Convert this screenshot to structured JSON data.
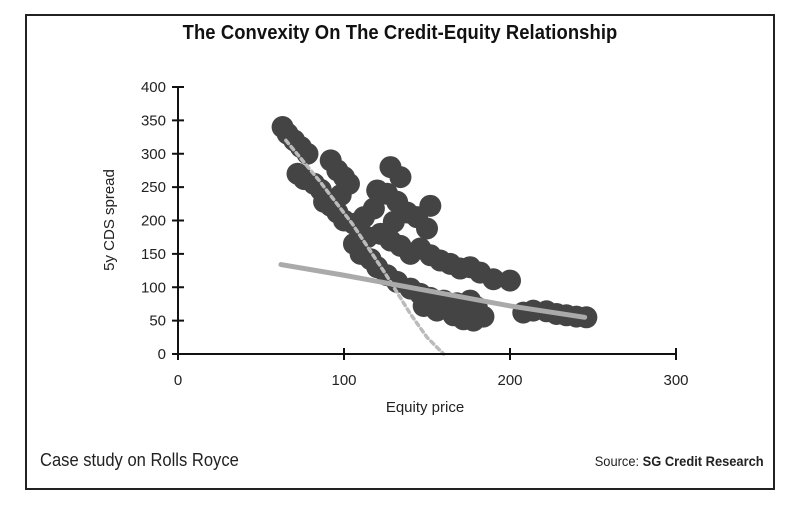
{
  "chart_data": {
    "type": "scatter",
    "title": "The Convexity On The Credit-Equity Relationship",
    "xlabel": "Equity price",
    "ylabel": "5y CDS spread",
    "xlim": [
      0,
      300
    ],
    "ylim": [
      0,
      400
    ],
    "xticks": [
      "0",
      "100",
      "200",
      "300"
    ],
    "yticks": [
      "0",
      "50",
      "100",
      "150",
      "200",
      "250",
      "300",
      "350",
      "400"
    ],
    "grid": false,
    "series": [
      {
        "type": "scatter",
        "color": "#444444",
        "points": [
          [
            63,
            340
          ],
          [
            66,
            330
          ],
          [
            70,
            320
          ],
          [
            74,
            310
          ],
          [
            78,
            300
          ],
          [
            72,
            270
          ],
          [
            76,
            262
          ],
          [
            82,
            255
          ],
          [
            86,
            246
          ],
          [
            88,
            228
          ],
          [
            92,
            290
          ],
          [
            96,
            275
          ],
          [
            100,
            265
          ],
          [
            103,
            255
          ],
          [
            98,
            238
          ],
          [
            92,
            222
          ],
          [
            96,
            212
          ],
          [
            100,
            200
          ],
          [
            106,
            195
          ],
          [
            112,
            205
          ],
          [
            118,
            218
          ],
          [
            120,
            245
          ],
          [
            126,
            240
          ],
          [
            132,
            228
          ],
          [
            128,
            280
          ],
          [
            134,
            265
          ],
          [
            130,
            198
          ],
          [
            138,
            212
          ],
          [
            144,
            205
          ],
          [
            150,
            188
          ],
          [
            152,
            222
          ],
          [
            122,
            180
          ],
          [
            128,
            170
          ],
          [
            134,
            162
          ],
          [
            140,
            150
          ],
          [
            146,
            158
          ],
          [
            152,
            148
          ],
          [
            158,
            140
          ],
          [
            164,
            135
          ],
          [
            170,
            128
          ],
          [
            176,
            130
          ],
          [
            182,
            122
          ],
          [
            190,
            112
          ],
          [
            200,
            110
          ],
          [
            120,
            130
          ],
          [
            126,
            118
          ],
          [
            132,
            108
          ],
          [
            140,
            98
          ],
          [
            146,
            90
          ],
          [
            152,
            84
          ],
          [
            160,
            80
          ],
          [
            168,
            76
          ],
          [
            176,
            80
          ],
          [
            180,
            70
          ],
          [
            148,
            72
          ],
          [
            156,
            65
          ],
          [
            166,
            58
          ],
          [
            172,
            52
          ],
          [
            178,
            50
          ],
          [
            184,
            56
          ],
          [
            106,
            165
          ],
          [
            110,
            150
          ],
          [
            116,
            142
          ],
          [
            114,
            175
          ],
          [
            208,
            62
          ],
          [
            214,
            65
          ],
          [
            222,
            64
          ],
          [
            228,
            60
          ],
          [
            234,
            58
          ],
          [
            240,
            56
          ],
          [
            246,
            55
          ]
        ]
      },
      {
        "type": "line",
        "style": "dashed",
        "color": "#bbbbbb",
        "x": [
          65,
          85,
          105,
          125,
          140,
          150,
          160
        ],
        "y": [
          320,
          260,
          195,
          120,
          60,
          25,
          0
        ]
      },
      {
        "type": "line",
        "style": "solid",
        "color": "#aaaaaa",
        "x": [
          62,
          100,
          150,
          200,
          245
        ],
        "y": [
          134,
          118,
          95,
          72,
          55
        ]
      }
    ]
  },
  "caption": "Case study on Rolls Royce",
  "source": {
    "prefix": "Source:",
    "name": "SG Credit Research"
  }
}
